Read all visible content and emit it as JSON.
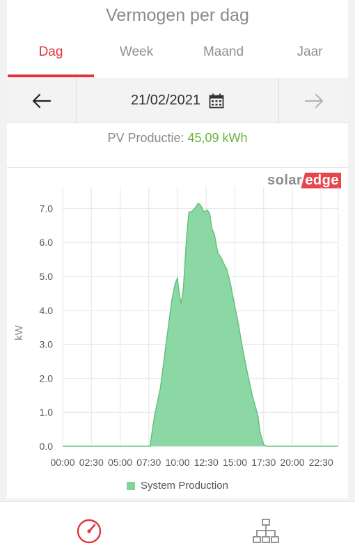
{
  "header": {
    "title": "Vermogen per dag"
  },
  "tabs": [
    {
      "label": "Dag",
      "active": true
    },
    {
      "label": "Week",
      "active": false
    },
    {
      "label": "Maand",
      "active": false
    },
    {
      "label": "Jaar",
      "active": false
    }
  ],
  "date_nav": {
    "date": "21/02/2021",
    "prev_icon": "arrow-left-icon",
    "next_icon": "arrow-right-icon",
    "calendar_icon": "calendar-icon"
  },
  "production": {
    "label": "PV Productie:",
    "value": "45,09 kWh"
  },
  "brand": {
    "solar": "solar",
    "edge": "edge"
  },
  "colors": {
    "accent": "#e3323a",
    "production_value": "#6cb33f",
    "series_fill": "#80d49a",
    "series_line": "#63c07f"
  },
  "chart_data": {
    "type": "area",
    "ylabel": "kW",
    "xlabel": "",
    "ylim": [
      0,
      7.5
    ],
    "grid": true,
    "legend_position": "bottom",
    "y_ticks": [
      "0.0",
      "1.0",
      "2.0",
      "3.0",
      "4.0",
      "5.0",
      "6.0",
      "7.0"
    ],
    "x_ticks": [
      "00:00",
      "02:30",
      "05:00",
      "07:30",
      "10:00",
      "12:30",
      "15:00",
      "17:30",
      "20:00",
      "22:30"
    ],
    "series": [
      {
        "name": "System Production",
        "x_hours": [
          0,
          7.6,
          8.0,
          8.5,
          9.0,
          9.5,
          9.8,
          10.0,
          10.1,
          10.3,
          10.5,
          10.8,
          11.0,
          11.2,
          11.5,
          11.8,
          12.0,
          12.3,
          12.6,
          12.8,
          13.0,
          13.2,
          13.5,
          13.8,
          14.0,
          14.3,
          14.6,
          15.0,
          15.3,
          15.6,
          16.0,
          16.5,
          17.0,
          17.2,
          17.5,
          17.8,
          24
        ],
        "values": [
          0,
          0,
          0.9,
          1.7,
          3.0,
          4.3,
          4.8,
          4.95,
          4.6,
          4.2,
          4.6,
          6.2,
          6.9,
          6.9,
          7.0,
          7.15,
          7.1,
          6.9,
          6.95,
          6.85,
          6.4,
          6.25,
          5.7,
          5.55,
          5.4,
          5.2,
          4.8,
          4.1,
          3.6,
          3.0,
          2.3,
          1.5,
          0.9,
          0.4,
          0.05,
          0,
          0
        ]
      }
    ]
  },
  "bottom_nav": {
    "left_icon": "dashboard-gauge-icon",
    "right_icon": "site-layout-icon"
  }
}
